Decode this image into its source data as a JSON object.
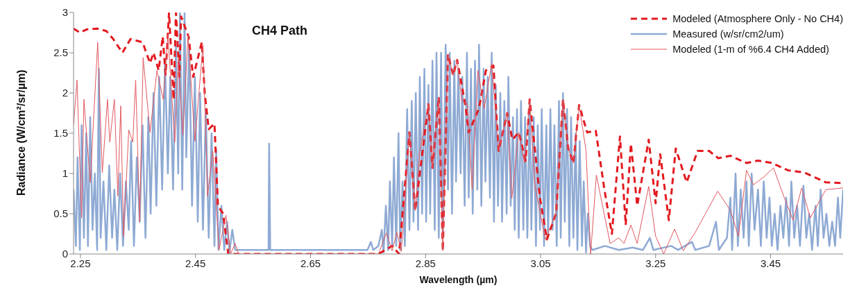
{
  "chart_data": {
    "type": "line",
    "title": "CH4 Path",
    "xlabel": "Wavelength (µm)",
    "ylabel": "Radiance (W/cm²/sr/µm)",
    "xlim": [
      2.238,
      3.576
    ],
    "ylim": [
      0,
      3
    ],
    "xticks": [
      2.25,
      2.45,
      2.65,
      2.85,
      3.05,
      3.25,
      3.45
    ],
    "yticks": [
      0,
      0.5,
      1,
      1.5,
      2,
      2.5,
      3
    ],
    "grid": false,
    "legend": "top right",
    "marker": "none",
    "series": [
      {
        "name": "Modeled (Atmosphere Only - No CH4)",
        "color": "#e3191f",
        "line_style": "dashed",
        "x": [
          2.238,
          2.249,
          2.261,
          2.279,
          2.295,
          2.307,
          2.323,
          2.337,
          2.358,
          2.371,
          2.377,
          2.386,
          2.393,
          2.398,
          2.404,
          2.412,
          2.416,
          2.422,
          2.425,
          2.438,
          2.446,
          2.461,
          2.466,
          2.473,
          2.483,
          2.489,
          2.498,
          2.507,
          2.768,
          2.792,
          2.804,
          2.822,
          2.832,
          2.855,
          2.862,
          2.873,
          2.88,
          2.889,
          2.898,
          2.905,
          2.919,
          2.925,
          2.943,
          2.955,
          2.968,
          2.977,
          2.992,
          3.001,
          3.012,
          3.024,
          3.031,
          3.037,
          3.049,
          3.061,
          3.077,
          3.089,
          3.098,
          3.107,
          3.117,
          3.131,
          3.146,
          3.161,
          3.174,
          3.188,
          3.198,
          3.207,
          3.218,
          3.238,
          3.25,
          3.258,
          3.273,
          3.285,
          3.304,
          3.323,
          3.343,
          3.359,
          3.38,
          3.408,
          3.428,
          3.452,
          3.48,
          3.509,
          3.546,
          3.576
        ],
        "values": [
          2.8,
          2.75,
          2.79,
          2.8,
          2.77,
          2.67,
          2.5,
          2.67,
          2.63,
          2.37,
          2.5,
          2.28,
          2.7,
          2.23,
          3,
          1.92,
          3,
          2.2,
          2.95,
          2.7,
          2.2,
          2.63,
          2,
          1.55,
          1.62,
          0.6,
          0.5,
          0,
          0,
          0.1,
          0,
          1.51,
          0.54,
          1.86,
          1.07,
          1.95,
          0.04,
          2.48,
          2.22,
          2.41,
          1.86,
          1.51,
          1.81,
          2.28,
          2.34,
          1.28,
          1.75,
          1.42,
          1.51,
          1.16,
          1.92,
          1.51,
          0.69,
          0.18,
          0.51,
          1.92,
          1.31,
          1.13,
          1.85,
          1.51,
          1.53,
          0.8,
          0.25,
          1.46,
          0.36,
          1.37,
          0.6,
          1.42,
          0.63,
          1.24,
          0.42,
          1.31,
          0.89,
          1.28,
          1.28,
          1.19,
          1.22,
          1.13,
          1.16,
          1.13,
          1.04,
          1.01,
          0.89,
          0.88
        ]
      },
      {
        "name": "Measured (w/sr/cm2/um)",
        "color": "#8eaad4",
        "line_style": "solid",
        "x": [
          2.238,
          2.242,
          2.245,
          2.249,
          2.252,
          2.256,
          2.26,
          2.263,
          2.267,
          2.271,
          2.275,
          2.279,
          2.282,
          2.285,
          2.29,
          2.295,
          2.3,
          2.305,
          2.309,
          2.314,
          2.319,
          2.324,
          2.329,
          2.334,
          2.338,
          2.343,
          2.348,
          2.353,
          2.358,
          2.363,
          2.368,
          2.372,
          2.377,
          2.382,
          2.387,
          2.392,
          2.397,
          2.402,
          2.406,
          2.411,
          2.416,
          2.42,
          2.423,
          2.427,
          2.431,
          2.434,
          2.439,
          2.444,
          2.449,
          2.454,
          2.458,
          2.463,
          2.468,
          2.473,
          2.478,
          2.483,
          2.486,
          2.49,
          2.495,
          2.5,
          2.505,
          2.509,
          2.514,
          2.519,
          2.525,
          2.577,
          2.578,
          2.58,
          2.64,
          2.701,
          2.749,
          2.755,
          2.759,
          2.768,
          2.774,
          2.777,
          2.781,
          2.785,
          2.788,
          2.792,
          2.795,
          2.799,
          2.803,
          2.806,
          2.81,
          2.814,
          2.818,
          2.822,
          2.826,
          2.829,
          2.833,
          2.837,
          2.84,
          2.844,
          2.848,
          2.851,
          2.855,
          2.858,
          2.862,
          2.866,
          2.869,
          2.873,
          2.877,
          2.88,
          2.885,
          2.889,
          2.892,
          2.896,
          2.9,
          2.903,
          2.907,
          2.911,
          2.914,
          2.918,
          2.922,
          2.925,
          2.929,
          2.932,
          2.936,
          2.94,
          2.943,
          2.947,
          2.951,
          2.954,
          2.958,
          2.962,
          2.965,
          2.969,
          2.972,
          2.976,
          2.98,
          2.983,
          2.987,
          2.991,
          2.994,
          2.998,
          3.002,
          3.005,
          3.009,
          3.012,
          3.016,
          3.02,
          3.023,
          3.027,
          3.031,
          3.034,
          3.038,
          3.042,
          3.045,
          3.049,
          3.052,
          3.056,
          3.06,
          3.063,
          3.067,
          3.071,
          3.074,
          3.078,
          3.082,
          3.085,
          3.089,
          3.092,
          3.096,
          3.1,
          3.103,
          3.107,
          3.111,
          3.114,
          3.118,
          3.122,
          3.125,
          3.129,
          3.132,
          3.136,
          3.14,
          3.162,
          3.186,
          3.21,
          3.228,
          3.24,
          3.246,
          3.277,
          3.289,
          3.313,
          3.319,
          3.343,
          3.355,
          3.36,
          3.374,
          3.38,
          3.383,
          3.389,
          3.393,
          3.398,
          3.403,
          3.408,
          3.412,
          3.417,
          3.422,
          3.428,
          3.433,
          3.438,
          3.443,
          3.448,
          3.452,
          3.457,
          3.462,
          3.467,
          3.472,
          3.477,
          3.482,
          3.486,
          3.491,
          3.496,
          3.501,
          3.507,
          3.512,
          3.517,
          3.522,
          3.528,
          3.532,
          3.537,
          3.542,
          3.547,
          3.552,
          3.557,
          3.562,
          3.567,
          3.571,
          3.576
        ],
        "values": [
          0.8,
          0.1,
          1.2,
          0.05,
          1.6,
          0.2,
          1.5,
          0.1,
          1.7,
          0.3,
          1,
          0.05,
          2.3,
          0.2,
          0.9,
          0.05,
          1.1,
          0.2,
          0.8,
          0.05,
          1,
          0.1,
          0.9,
          0.3,
          1.4,
          0.1,
          1.2,
          0.4,
          1.6,
          0.2,
          1.7,
          0.5,
          2,
          0.6,
          2.2,
          0.8,
          2.4,
          1,
          2.2,
          0.8,
          2.6,
          1,
          3,
          0.8,
          3,
          1.2,
          2.6,
          0.6,
          2.2,
          0.4,
          2,
          0.3,
          1.8,
          0.2,
          1.5,
          0.1,
          1.3,
          0.05,
          0.6,
          0.05,
          0.4,
          0.02,
          0.3,
          0.05,
          0.05,
          0.05,
          1.37,
          0.05,
          0.05,
          0.05,
          0.05,
          0.15,
          0.05,
          0.1,
          0.3,
          0.02,
          0.6,
          0.05,
          0.9,
          0.1,
          1.2,
          0.1,
          1.5,
          0.05,
          0.9,
          0.1,
          1.8,
          0.3,
          1.9,
          0.4,
          2,
          0.3,
          2.2,
          0.5,
          2.3,
          0.4,
          2.1,
          0.5,
          2.4,
          0.3,
          2.5,
          0.2,
          2.5,
          0.2,
          2.6,
          0.8,
          2.5,
          0.5,
          2.4,
          0.9,
          2.3,
          1,
          2.2,
          0.6,
          2.5,
          0.7,
          2.3,
          0.5,
          2.4,
          0.8,
          2.6,
          0.6,
          2.3,
          0.9,
          2.2,
          0.7,
          2.5,
          0.4,
          2.1,
          0.6,
          2,
          0.4,
          1.9,
          0.5,
          2.2,
          0.6,
          1.7,
          0.3,
          1.8,
          0.2,
          1.9,
          0.3,
          1.7,
          0.2,
          1.9,
          0.3,
          1.7,
          0.1,
          1.6,
          0.3,
          1.8,
          0.1,
          1.6,
          0.2,
          1.8,
          0.3,
          1.6,
          0.1,
          1.9,
          0.2,
          2,
          0.4,
          1.8,
          0.1,
          1.7,
          0.2,
          1.5,
          0.05,
          1.4,
          0.1,
          0.9,
          0.02,
          0.5,
          0.1,
          0.05,
          0.1,
          0.05,
          0.08,
          0.05,
          0.2,
          0.05,
          0.1,
          0.05,
          0.15,
          0.05,
          0.1,
          0.4,
          0.05,
          0.2,
          0.7,
          0.05,
          1,
          0.1,
          0.8,
          0.2,
          0.9,
          0.1,
          1,
          0.3,
          0.8,
          0.1,
          0.9,
          0.2,
          0.7,
          0.1,
          0.5,
          0.05,
          0.6,
          0.2,
          0.7,
          0.1,
          0.9,
          0.2,
          0.6,
          0.1,
          0.85,
          0.2,
          0.5,
          0.05,
          0.6,
          0.1,
          0.8,
          0.2,
          0.5,
          0.1,
          0.4,
          0.1,
          0.7,
          0.2,
          0.8
        ]
      },
      {
        "name": "Modeled (1-m of %6.4 CH4 Added)",
        "color": "#e0575f",
        "line_style": "solid",
        "x": [
          2.238,
          2.244,
          2.252,
          2.256,
          2.267,
          2.28,
          2.288,
          2.297,
          2.301,
          2.309,
          2.315,
          2.32,
          2.325,
          2.334,
          2.341,
          2.346,
          2.353,
          2.359,
          2.371,
          2.383,
          2.394,
          2.402,
          2.414,
          2.42,
          2.428,
          2.437,
          2.449,
          2.463,
          2.471,
          2.48,
          2.491,
          2.503,
          2.511,
          2.519,
          2.525,
          2.764,
          2.768,
          2.782,
          2.792,
          2.8,
          2.808,
          2.822,
          2.832,
          2.84,
          2.855,
          2.862,
          2.873,
          2.88,
          2.889,
          2.898,
          2.905,
          2.913,
          2.923,
          2.931,
          2.941,
          2.952,
          2.965,
          2.977,
          2.992,
          3,
          3.012,
          3.022,
          3.031,
          3.04,
          3.058,
          3.077,
          3.089,
          3.098,
          3.107,
          3.117,
          3.129,
          3.137,
          3.147,
          3.171,
          3.186,
          3.195,
          3.207,
          3.218,
          3.238,
          3.25,
          3.264,
          3.283,
          3.298,
          3.319,
          3.358,
          3.38,
          3.394,
          3.408,
          3.42,
          3.437,
          3.455,
          3.471,
          3.489,
          3.504,
          3.519,
          3.546,
          3.576
        ],
        "values": [
          1.6,
          2.16,
          0.45,
          1.92,
          0.89,
          2.63,
          1.01,
          1.92,
          1.39,
          1.92,
          0.72,
          1.84,
          0.22,
          1.54,
          1.39,
          2.16,
          0.4,
          2.44,
          1.51,
          2.28,
          1.92,
          2.72,
          1.39,
          2.43,
          1.48,
          2.72,
          1.4,
          2.6,
          0.72,
          1.28,
          0.05,
          0.48,
          0,
          0.13,
          0,
          0,
          0,
          0.26,
          0.04,
          0.27,
          0.03,
          1.51,
          0.54,
          1.28,
          1.86,
          1.07,
          1.95,
          0.04,
          2.48,
          2.22,
          2.41,
          1.9,
          1.86,
          0.8,
          2.28,
          1.81,
          2.37,
          1.28,
          1.75,
          0.69,
          1.51,
          1.13,
          1.92,
          0.86,
          0.18,
          0.51,
          1.92,
          1.31,
          1.13,
          1.85,
          1.28,
          0,
          0.98,
          0.13,
          0.2,
          0.13,
          0.36,
          0.13,
          0.84,
          0.22,
          0,
          0.31,
          0.04,
          0.27,
          0.78,
          0.54,
          0.22,
          1.04,
          0.86,
          0.95,
          1.07,
          0.75,
          0.42,
          0.82,
          0.45,
          0.8,
          0.82
        ]
      }
    ]
  }
}
